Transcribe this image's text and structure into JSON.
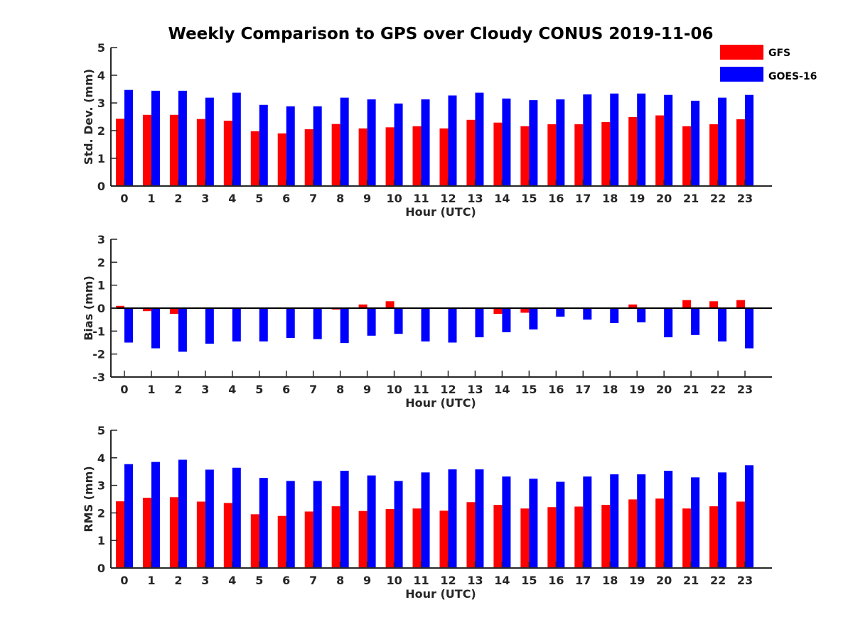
{
  "title": "Weekly Comparison to GPS over Cloudy CONUS 2019-11-06",
  "legend": [
    {
      "name": "GFS",
      "color": "#ff0000"
    },
    {
      "name": "GOES-16",
      "color": "#0000ff"
    }
  ],
  "chart_data": [
    {
      "type": "bar",
      "title": "Weekly Comparison to GPS over Cloudy CONUS 2019-11-06",
      "xlabel": "Hour (UTC)",
      "ylabel": "Std. Dev. (mm)",
      "ylim": [
        0,
        5
      ],
      "yticks": [
        0,
        1,
        2,
        3,
        4,
        5
      ],
      "categories": [
        "0",
        "1",
        "2",
        "3",
        "4",
        "5",
        "6",
        "7",
        "8",
        "9",
        "10",
        "11",
        "12",
        "13",
        "14",
        "15",
        "16",
        "17",
        "18",
        "19",
        "20",
        "21",
        "22",
        "23"
      ],
      "legend_position": "top-right",
      "series": [
        {
          "name": "GFS",
          "color": "#ff0000",
          "values": [
            2.43,
            2.57,
            2.57,
            2.42,
            2.36,
            1.98,
            1.9,
            2.05,
            2.24,
            2.08,
            2.12,
            2.16,
            2.08,
            2.39,
            2.29,
            2.16,
            2.23,
            2.23,
            2.31,
            2.49,
            2.55,
            2.16,
            2.23,
            2.41
          ]
        },
        {
          "name": "GOES-16",
          "color": "#0000ff",
          "values": [
            3.47,
            3.44,
            3.44,
            3.19,
            3.37,
            2.93,
            2.88,
            2.88,
            3.19,
            3.13,
            2.98,
            3.13,
            3.27,
            3.37,
            3.16,
            3.1,
            3.13,
            3.31,
            3.34,
            3.34,
            3.29,
            3.08,
            3.19,
            3.29
          ]
        }
      ]
    },
    {
      "type": "bar",
      "xlabel": "Hour (UTC)",
      "ylabel": "Bias (mm)",
      "ylim": [
        -3,
        3
      ],
      "yticks": [
        -3,
        -2,
        -1,
        0,
        1,
        2,
        3
      ],
      "categories": [
        "0",
        "1",
        "2",
        "3",
        "4",
        "5",
        "6",
        "7",
        "8",
        "9",
        "10",
        "11",
        "12",
        "13",
        "14",
        "15",
        "16",
        "17",
        "18",
        "19",
        "20",
        "21",
        "22",
        "23"
      ],
      "series": [
        {
          "name": "GFS",
          "color": "#ff0000",
          "values": [
            0.1,
            -0.13,
            -0.25,
            0.0,
            0.0,
            0.0,
            0.03,
            0.0,
            -0.06,
            0.16,
            0.3,
            0.0,
            -0.03,
            0.0,
            -0.25,
            -0.2,
            0.03,
            0.0,
            0.0,
            0.16,
            0.0,
            0.35,
            0.3,
            0.35
          ]
        },
        {
          "name": "GOES-16",
          "color": "#0000ff",
          "values": [
            -1.5,
            -1.75,
            -1.9,
            -1.55,
            -1.45,
            -1.45,
            -1.3,
            -1.35,
            -1.52,
            -1.2,
            -1.12,
            -1.45,
            -1.5,
            -1.27,
            -1.05,
            -0.93,
            -0.37,
            -0.5,
            -0.65,
            -0.62,
            -1.27,
            -1.17,
            -1.45,
            -1.75
          ]
        }
      ]
    },
    {
      "type": "bar",
      "xlabel": "Hour (UTC)",
      "ylabel": "RMS (mm)",
      "ylim": [
        0,
        5
      ],
      "yticks": [
        0,
        1,
        2,
        3,
        4,
        5
      ],
      "categories": [
        "0",
        "1",
        "2",
        "3",
        "4",
        "5",
        "6",
        "7",
        "8",
        "9",
        "10",
        "11",
        "12",
        "13",
        "14",
        "15",
        "16",
        "17",
        "18",
        "19",
        "20",
        "21",
        "22",
        "23"
      ],
      "series": [
        {
          "name": "GFS",
          "color": "#ff0000",
          "values": [
            2.42,
            2.55,
            2.57,
            2.41,
            2.36,
            1.95,
            1.89,
            2.05,
            2.24,
            2.07,
            2.14,
            2.16,
            2.08,
            2.39,
            2.29,
            2.16,
            2.21,
            2.23,
            2.29,
            2.49,
            2.52,
            2.16,
            2.24,
            2.41
          ]
        },
        {
          "name": "GOES-16",
          "color": "#0000ff",
          "values": [
            3.77,
            3.85,
            3.93,
            3.57,
            3.64,
            3.27,
            3.16,
            3.16,
            3.53,
            3.36,
            3.16,
            3.47,
            3.58,
            3.58,
            3.32,
            3.24,
            3.13,
            3.32,
            3.4,
            3.4,
            3.53,
            3.29,
            3.47,
            3.73
          ]
        }
      ]
    }
  ]
}
